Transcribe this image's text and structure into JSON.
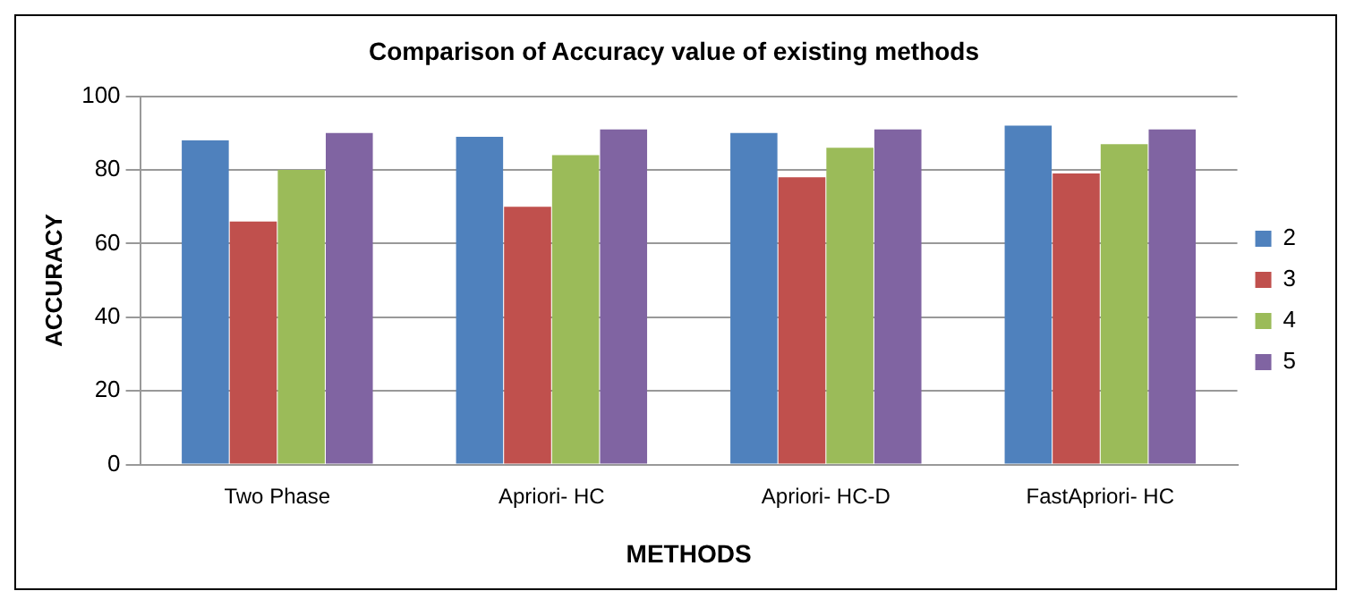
{
  "chart_data": {
    "type": "bar",
    "title": "Comparison of Accuracy value of existing methods",
    "xlabel": "METHODS",
    "ylabel": "ACCURACY",
    "categories": [
      "Two Phase",
      "Apriori- HC",
      "Apriori- HC-D",
      "FastApriori- HC"
    ],
    "series": [
      {
        "name": "2",
        "color": "#4f81bd",
        "values": [
          88,
          89,
          90,
          92
        ]
      },
      {
        "name": "3",
        "color": "#c0504d",
        "values": [
          66,
          70,
          78,
          79
        ]
      },
      {
        "name": "4",
        "color": "#9bbb59",
        "values": [
          80,
          84,
          86,
          87
        ]
      },
      {
        "name": "5",
        "color": "#8064a2",
        "values": [
          90,
          91,
          91,
          91
        ]
      }
    ],
    "ylim": [
      0,
      100
    ],
    "yticks": [
      0,
      20,
      40,
      60,
      80,
      100
    ],
    "grid": "y",
    "legend": "right"
  }
}
